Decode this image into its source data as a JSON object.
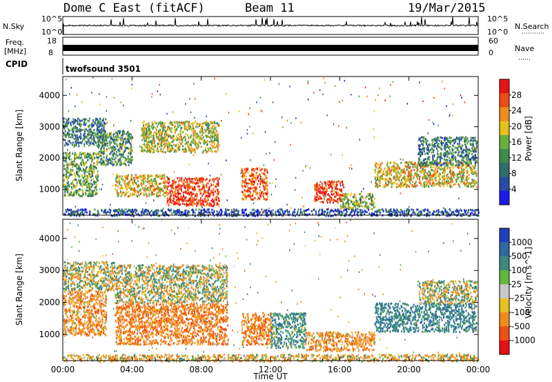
{
  "header": {
    "radar": "Dome C East (fitACF)",
    "beam": "Beam 11",
    "date": "19/Mar/2015"
  },
  "noise_panel": {
    "left_label": "N.Sky",
    "right_label": "N.Search",
    "left_ticks": [
      "10^5",
      "10^0"
    ],
    "right_ticks": [
      "10^5",
      "10^0"
    ]
  },
  "freq_panel": {
    "left_label_line1": "Freq.",
    "left_label_line2": "[MHz]",
    "right_label": "Nave",
    "left_ticks": [
      "18",
      "8"
    ],
    "right_ticks": [
      "60",
      "0"
    ]
  },
  "cpid_panel": {
    "label": "CPID",
    "value": "twofsound 3501"
  },
  "chart_data": [
    {
      "type": "heatmap",
      "name": "power",
      "ylabel": "Slant Range [km]",
      "ylim": [
        180,
        4600
      ],
      "yticks": [
        "1000",
        "2000",
        "3000",
        "4000"
      ],
      "ytick_values": [
        1000,
        2000,
        3000,
        4000
      ],
      "colorbar_label": "Power [dB]",
      "colorbar_ticks": [
        "4",
        "8",
        "12",
        "16",
        "20",
        "24",
        "28"
      ],
      "colorbar_values": [
        4,
        8,
        12,
        16,
        20,
        24,
        28
      ],
      "colorbar_range": [
        0,
        32
      ],
      "colors": [
        "#1a1af0",
        "#2a4aa8",
        "#2e6e6e",
        "#3c8c4a",
        "#6aae3c",
        "#e6c21a",
        "#f08c1e",
        "#f04a14",
        "#e81414"
      ],
      "echo_regions": [
        {
          "t": [
            0.0,
            2.5
          ],
          "r": [
            2400,
            3300
          ],
          "val": 10
        },
        {
          "t": [
            0.0,
            2.0
          ],
          "r": [
            800,
            2200
          ],
          "val": 14
        },
        {
          "t": [
            2.0,
            4.0
          ],
          "r": [
            1800,
            2900
          ],
          "val": 12
        },
        {
          "t": [
            3.0,
            6.0
          ],
          "r": [
            800,
            1500
          ],
          "val": 20
        },
        {
          "t": [
            4.5,
            9.0
          ],
          "r": [
            2200,
            3200
          ],
          "val": 18
        },
        {
          "t": [
            6.0,
            9.0
          ],
          "r": [
            500,
            1400
          ],
          "val": 28
        },
        {
          "t": [
            10.3,
            11.8
          ],
          "r": [
            700,
            1700
          ],
          "val": 26
        },
        {
          "t": [
            14.5,
            16.2
          ],
          "r": [
            600,
            1300
          ],
          "val": 28
        },
        {
          "t": [
            16.0,
            18.0
          ],
          "r": [
            400,
            900
          ],
          "val": 16
        },
        {
          "t": [
            18.0,
            23.9
          ],
          "r": [
            1100,
            1900
          ],
          "val": 20
        },
        {
          "t": [
            20.5,
            23.9
          ],
          "r": [
            1800,
            2700
          ],
          "val": 10
        },
        {
          "t": [
            0.0,
            24.0
          ],
          "r": [
            180,
            400
          ],
          "val": 6
        }
      ]
    },
    {
      "type": "heatmap",
      "name": "velocity",
      "ylabel": "Slant Range [km]",
      "ylim": [
        180,
        4600
      ],
      "yticks": [
        "1000",
        "2000",
        "3000",
        "4000"
      ],
      "ytick_values": [
        1000,
        2000,
        3000,
        4000
      ],
      "colorbar_label": "Velocity [m s^-1]",
      "colorbar_ticks": [
        "1000",
        "500",
        "100",
        "25",
        "-25",
        "-100",
        "-500",
        "-1000"
      ],
      "colorbar_values": [
        1000,
        500,
        100,
        25,
        -25,
        -100,
        -500,
        -1000
      ],
      "colors": [
        "#2040c0",
        "#2e6aa0",
        "#3a8a80",
        "#60b840",
        "#c8c8c8",
        "#e8c020",
        "#f08c1e",
        "#f05010",
        "#e81010"
      ],
      "echo_regions": [
        {
          "t": [
            0.0,
            3.0
          ],
          "r": [
            2400,
            3300
          ],
          "val": 0
        },
        {
          "t": [
            0.0,
            2.5
          ],
          "r": [
            1000,
            2400
          ],
          "val": -300
        },
        {
          "t": [
            3.0,
            9.5
          ],
          "r": [
            2000,
            3200
          ],
          "val": 0
        },
        {
          "t": [
            3.0,
            9.5
          ],
          "r": [
            700,
            2000
          ],
          "val": -400
        },
        {
          "t": [
            10.3,
            12.0
          ],
          "r": [
            700,
            1700
          ],
          "val": -400
        },
        {
          "t": [
            12.0,
            14.0
          ],
          "r": [
            600,
            1700
          ],
          "val": 300
        },
        {
          "t": [
            14.0,
            18.0
          ],
          "r": [
            500,
            1100
          ],
          "val": -300
        },
        {
          "t": [
            18.0,
            23.9
          ],
          "r": [
            1100,
            2000
          ],
          "val": 400
        },
        {
          "t": [
            20.5,
            23.9
          ],
          "r": [
            2000,
            2700
          ],
          "val": 0
        },
        {
          "t": [
            0.0,
            24.0
          ],
          "r": [
            180,
            400
          ],
          "val": -150
        }
      ]
    }
  ],
  "x_axis": {
    "label": "Time UT",
    "ticks": [
      "00:00",
      "04:00",
      "08:00",
      "12:00",
      "16:00",
      "20:00",
      "00:00"
    ],
    "tick_hours": [
      0,
      4,
      8,
      12,
      16,
      20,
      24
    ]
  }
}
